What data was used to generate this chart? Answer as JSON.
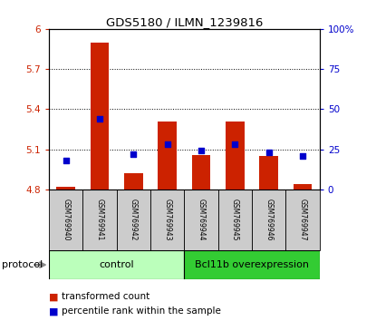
{
  "title": "GDS5180 / ILMN_1239816",
  "samples": [
    "GSM769940",
    "GSM769941",
    "GSM769942",
    "GSM769943",
    "GSM769944",
    "GSM769945",
    "GSM769946",
    "GSM769947"
  ],
  "transformed_count": [
    4.82,
    5.9,
    4.92,
    5.31,
    5.06,
    5.31,
    5.05,
    4.84
  ],
  "transformed_count_base": 4.8,
  "percentile_rank": [
    18,
    44,
    22,
    28,
    24,
    28,
    23,
    21
  ],
  "ylim_left": [
    4.8,
    6.0
  ],
  "ylim_right": [
    0,
    100
  ],
  "yticks_left": [
    4.8,
    5.1,
    5.4,
    5.7,
    6.0
  ],
  "yticks_right": [
    0,
    25,
    50,
    75,
    100
  ],
  "ytick_labels_left": [
    "4.8",
    "5.1",
    "5.4",
    "5.7",
    "6"
  ],
  "ytick_labels_right": [
    "0",
    "25",
    "50",
    "75",
    "100%"
  ],
  "gridlines": [
    5.1,
    5.4,
    5.7
  ],
  "bar_color": "#cc2200",
  "dot_color": "#0000cc",
  "control_count": 4,
  "overexpression_count": 4,
  "control_label": "control",
  "overexpression_label": "Bcl11b overexpression",
  "protocol_label": "protocol",
  "legend_red": "transformed count",
  "legend_blue": "percentile rank within the sample",
  "control_bg": "#bbffbb",
  "overexpression_bg": "#33cc33",
  "sample_bg": "#cccccc",
  "bar_width": 0.55
}
